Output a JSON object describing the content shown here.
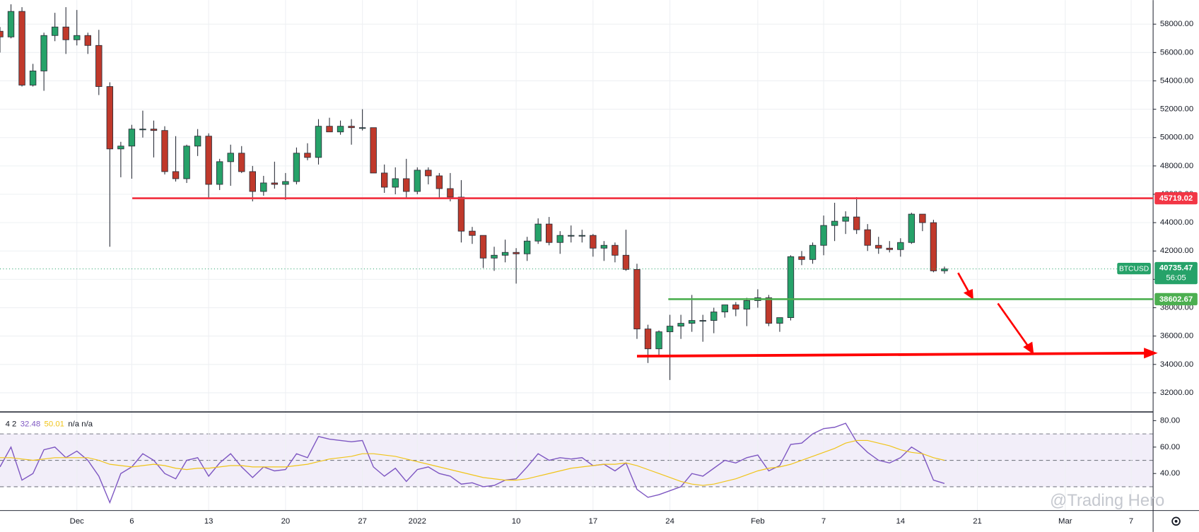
{
  "chart_data": [
    {
      "type": "candlestick",
      "symbol": "BTCUSD",
      "countdown": "56:05",
      "up_color": "#26a269",
      "down_color": "#c0392b",
      "x": [
        -7,
        -6,
        -5,
        -4,
        -3,
        -2,
        -1,
        0,
        1,
        2,
        3,
        4,
        5,
        6,
        7,
        8,
        9,
        10,
        11,
        12,
        13,
        14,
        15,
        16,
        17,
        18,
        19,
        20,
        21,
        22,
        23,
        24,
        25,
        26,
        27,
        28,
        29,
        30,
        31,
        32,
        33,
        34,
        35,
        36,
        37,
        38,
        39,
        40,
        41,
        42,
        43,
        44,
        45,
        46,
        47,
        48,
        49,
        50,
        51,
        52,
        53,
        54,
        55,
        56,
        57,
        58,
        59,
        60,
        61,
        62,
        63,
        64,
        65,
        66,
        67,
        68,
        69,
        70,
        71,
        72,
        73,
        74,
        75,
        76,
        77,
        78,
        79
      ],
      "open": [
        57500,
        57100,
        58900,
        53700,
        54700,
        57200,
        57800,
        56900,
        57200,
        56500,
        53600,
        49200,
        49400,
        50600,
        50600,
        50500,
        47600,
        47100,
        49400,
        50100,
        46700,
        48300,
        48900,
        47600,
        46200,
        46800,
        46700,
        46900,
        48900,
        48600,
        50800,
        50400,
        50800,
        50700,
        50700,
        47500,
        46500,
        47100,
        46200,
        47700,
        47300,
        46400,
        45800,
        43400,
        43100,
        41500,
        41700,
        41900,
        41800,
        42700,
        43900,
        42600,
        43100,
        43100,
        43100,
        42200,
        42400,
        41700,
        40700,
        36500,
        35100,
        36300,
        36700,
        36900,
        37100,
        37100,
        37700,
        38200,
        37900,
        38500,
        38700,
        36900,
        37300,
        41600,
        41400,
        42400,
        43800,
        44100,
        44400,
        43500,
        42400,
        42200,
        42100,
        42600,
        44600,
        44000,
        40600
      ],
      "high": [
        57800,
        59400,
        59200,
        55200,
        57400,
        58800,
        59200,
        59000,
        57400,
        57600,
        53900,
        49700,
        50900,
        51900,
        51200,
        50800,
        50100,
        49500,
        50600,
        50300,
        48500,
        49500,
        49400,
        48000,
        47300,
        48300,
        47500,
        49300,
        49600,
        51300,
        51400,
        51200,
        51300,
        52000,
        50700,
        48100,
        47900,
        48500,
        47900,
        47900,
        47500,
        47500,
        47000,
        43700,
        43100,
        42300,
        42800,
        42200,
        43000,
        44300,
        44400,
        43400,
        43800,
        43500,
        43200,
        42700,
        42600,
        43500,
        41100,
        36800,
        36400,
        37500,
        37500,
        38900,
        37500,
        38000,
        38200,
        38400,
        38700,
        39300,
        38900,
        37300,
        41700,
        42000,
        42600,
        44500,
        45400,
        44800,
        45800,
        43900,
        43000,
        42700,
        42900,
        44700,
        44600,
        44200,
        40900
      ],
      "low": [
        56000,
        57000,
        53600,
        53600,
        53300,
        56800,
        55900,
        56500,
        55900,
        53000,
        42300,
        47200,
        47100,
        50000,
        48600,
        47400,
        46900,
        46800,
        48700,
        45700,
        46300,
        46600,
        47500,
        45500,
        45900,
        46400,
        45600,
        46700,
        48400,
        48100,
        50400,
        50200,
        49500,
        50500,
        47500,
        46100,
        46000,
        45700,
        46000,
        46700,
        45700,
        45500,
        42600,
        42500,
        40800,
        40600,
        41200,
        39700,
        41300,
        42500,
        42400,
        41800,
        42600,
        42600,
        41600,
        41300,
        41200,
        40600,
        35800,
        34100,
        34600,
        32900,
        35800,
        36300,
        35600,
        36200,
        37300,
        37400,
        36700,
        38000,
        36700,
        36300,
        37100,
        41000,
        41100,
        41700,
        42700,
        43200,
        43200,
        42000,
        41800,
        41900,
        41600,
        42500,
        43400,
        40500,
        40400
      ],
      "close": [
        57100,
        58900,
        53700,
        54700,
        57200,
        57800,
        56900,
        57200,
        56500,
        53600,
        49200,
        49400,
        50600,
        50600,
        50500,
        47600,
        47100,
        49400,
        50100,
        46700,
        48300,
        48900,
        47600,
        46200,
        46800,
        46700,
        46900,
        48900,
        48600,
        50800,
        50400,
        50800,
        50700,
        50700,
        47500,
        46500,
        47100,
        46200,
        47700,
        47300,
        46400,
        45800,
        43400,
        43100,
        41500,
        41700,
        41900,
        41800,
        42700,
        43900,
        42600,
        43100,
        43100,
        43100,
        42200,
        42400,
        41700,
        40700,
        36500,
        35100,
        36300,
        36700,
        36900,
        37100,
        37100,
        37700,
        38200,
        37900,
        38500,
        38700,
        36900,
        37300,
        41600,
        41400,
        42400,
        43800,
        44100,
        44400,
        43500,
        42400,
        42200,
        42100,
        42600,
        44600,
        44000,
        40600,
        40735.47
      ],
      "xlim": [
        -7,
        98
      ],
      "ylim": [
        30700,
        59700
      ],
      "yticks": [
        {
          "value": 32000,
          "label": "32000.00"
        },
        {
          "value": 34000,
          "label": "34000.00"
        },
        {
          "value": 36000,
          "label": "36000.00"
        },
        {
          "value": 38000,
          "label": "38000.00"
        },
        {
          "value": 40000,
          "label": "40000.00"
        },
        {
          "value": 42000,
          "label": "42000.00"
        },
        {
          "value": 44000,
          "label": "44000.00"
        },
        {
          "value": 46000,
          "label": "46000.00"
        },
        {
          "value": 48000,
          "label": "48000.00"
        },
        {
          "value": 50000,
          "label": "50000.00"
        },
        {
          "value": 52000,
          "label": "52000.00"
        },
        {
          "value": 54000,
          "label": "54000.00"
        },
        {
          "value": 56000,
          "label": "56000.00"
        },
        {
          "value": 58000,
          "label": "58000.00"
        }
      ],
      "levels": [
        {
          "value": 45719.02,
          "color": "#f23645"
        },
        {
          "value": 38602.67,
          "color": "#4caf50"
        }
      ],
      "grid": true
    },
    {
      "type": "line",
      "label": "4 2",
      "extra": "n/a n/a",
      "x": [
        -7,
        -6,
        -5,
        -4,
        -3,
        -2,
        -1,
        0,
        1,
        2,
        3,
        4,
        5,
        6,
        7,
        8,
        9,
        10,
        11,
        12,
        13,
        14,
        15,
        16,
        17,
        18,
        19,
        20,
        21,
        22,
        23,
        24,
        25,
        26,
        27,
        28,
        29,
        30,
        31,
        32,
        33,
        34,
        35,
        36,
        37,
        38,
        39,
        40,
        41,
        42,
        43,
        44,
        45,
        46,
        47,
        48,
        49,
        50,
        51,
        52,
        53,
        54,
        55,
        56,
        57,
        58,
        59,
        60,
        61,
        62,
        63,
        64,
        65,
        66,
        67,
        68,
        69,
        70,
        71,
        72,
        73,
        74,
        75,
        76,
        77,
        78,
        79
      ],
      "series": [
        {
          "color": "#7e57c2",
          "values": [
            45,
            60,
            35,
            40,
            58,
            60,
            52,
            57,
            50,
            38,
            18,
            40,
            45,
            55,
            50,
            40,
            36,
            50,
            52,
            38,
            48,
            55,
            45,
            37,
            45,
            42,
            43,
            55,
            52,
            68,
            66,
            65,
            64,
            65,
            45,
            38,
            44,
            34,
            43,
            45,
            40,
            38,
            32,
            33,
            30,
            31,
            35,
            36,
            45,
            55,
            50,
            52,
            51,
            52,
            46,
            47,
            42,
            48,
            28,
            22,
            24,
            27,
            30,
            40,
            38,
            44,
            50,
            48,
            52,
            54,
            42,
            46,
            62,
            63,
            70,
            74,
            75,
            78,
            64,
            56,
            50,
            48,
            52,
            60,
            55,
            35,
            32.48
          ]
        },
        {
          "color": "#f0c419",
          "values": [
            52,
            52,
            51,
            50,
            51,
            52,
            52,
            52,
            52,
            50,
            47,
            46,
            45,
            46,
            47,
            46,
            44,
            43,
            44,
            44,
            45,
            46,
            46,
            45,
            45,
            45,
            45,
            46,
            47,
            49,
            51,
            52,
            53,
            55,
            55,
            54,
            53,
            51,
            49,
            47,
            45,
            43,
            41,
            39,
            37,
            36,
            35,
            35,
            36,
            38,
            40,
            42,
            44,
            45,
            46,
            47,
            47,
            48,
            46,
            43,
            40,
            37,
            34,
            32,
            31,
            32,
            34,
            36,
            39,
            42,
            44,
            45,
            47,
            50,
            53,
            56,
            59,
            63,
            65,
            65,
            63,
            61,
            58,
            56,
            55,
            52,
            50.01
          ]
        }
      ],
      "levels": [
        70,
        50,
        30
      ],
      "xlim": [
        -7,
        98
      ],
      "ylim": [
        12,
        86
      ],
      "yticks": [
        {
          "value": 40,
          "label": "40.00"
        },
        {
          "value": 60,
          "label": "60.00"
        },
        {
          "value": 80,
          "label": "80.00"
        }
      ],
      "xticks": [
        {
          "value": 0,
          "label": "Dec"
        },
        {
          "value": 5,
          "label": "6"
        },
        {
          "value": 12,
          "label": "13"
        },
        {
          "value": 19,
          "label": "20"
        },
        {
          "value": 26,
          "label": "27"
        },
        {
          "value": 31,
          "label": "2022"
        },
        {
          "value": 40,
          "label": "10"
        },
        {
          "value": 47,
          "label": "17"
        },
        {
          "value": 54,
          "label": "24"
        },
        {
          "value": 62,
          "label": "Feb"
        },
        {
          "value": 68,
          "label": "7"
        },
        {
          "value": 75,
          "label": "14"
        },
        {
          "value": 82,
          "label": "21"
        },
        {
          "value": 90,
          "label": "Mar"
        },
        {
          "value": 96,
          "label": "7"
        }
      ]
    }
  ],
  "watermark": "@Trading Hero"
}
